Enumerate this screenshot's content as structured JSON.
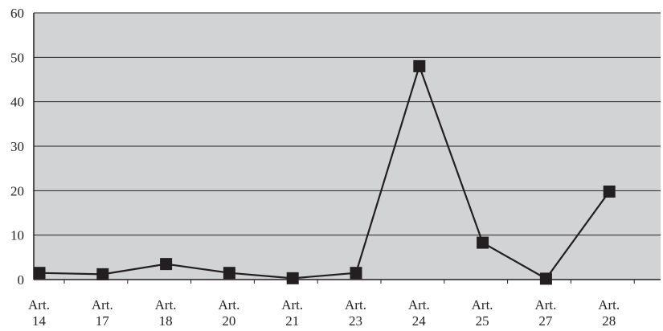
{
  "chart_data": {
    "type": "line",
    "title": "",
    "xlabel": "",
    "ylabel": "",
    "categories": [
      [
        "Art.",
        "14"
      ],
      [
        "Art.",
        "17"
      ],
      [
        "Art.",
        "18"
      ],
      [
        "Art.",
        "20"
      ],
      [
        "Art.",
        "21"
      ],
      [
        "Art.",
        "23"
      ],
      [
        "Art.",
        "24"
      ],
      [
        "Art.",
        "25"
      ],
      [
        "Art.",
        "27"
      ],
      [
        "Art.",
        "28"
      ]
    ],
    "series": [
      {
        "values": [
          1.5,
          1.2,
          3.5,
          1.5,
          0.3,
          1.5,
          48,
          8.3,
          0.2,
          19.8
        ]
      }
    ],
    "ylim": [
      0,
      60
    ],
    "yticks": [
      0,
      10,
      20,
      30,
      40,
      50,
      60
    ],
    "grid": true,
    "legend": "none",
    "colors": {
      "plot_background": "#d2d3d5",
      "line": "#231f20",
      "marker": "#231f20",
      "grid": "#231f20",
      "text": "#231f20"
    }
  }
}
